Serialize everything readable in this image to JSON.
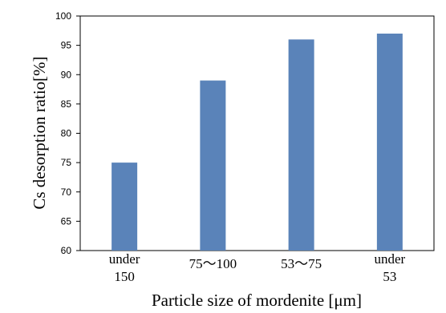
{
  "chart_data": {
    "type": "bar",
    "categories": [
      [
        "under",
        "150"
      ],
      [
        "75〜100"
      ],
      [
        "53〜75"
      ],
      [
        "under",
        "53"
      ]
    ],
    "values": [
      75,
      89,
      96,
      97
    ],
    "title": "",
    "xlabel": "Particle size of mordenite [μm]",
    "ylabel": "Cs desorption ratio[%]",
    "ylim": [
      60,
      100
    ],
    "yticks": [
      60,
      65,
      70,
      75,
      80,
      85,
      90,
      95,
      100
    ],
    "bar_color": "#5a83b9",
    "grid": false,
    "legend": "none"
  }
}
